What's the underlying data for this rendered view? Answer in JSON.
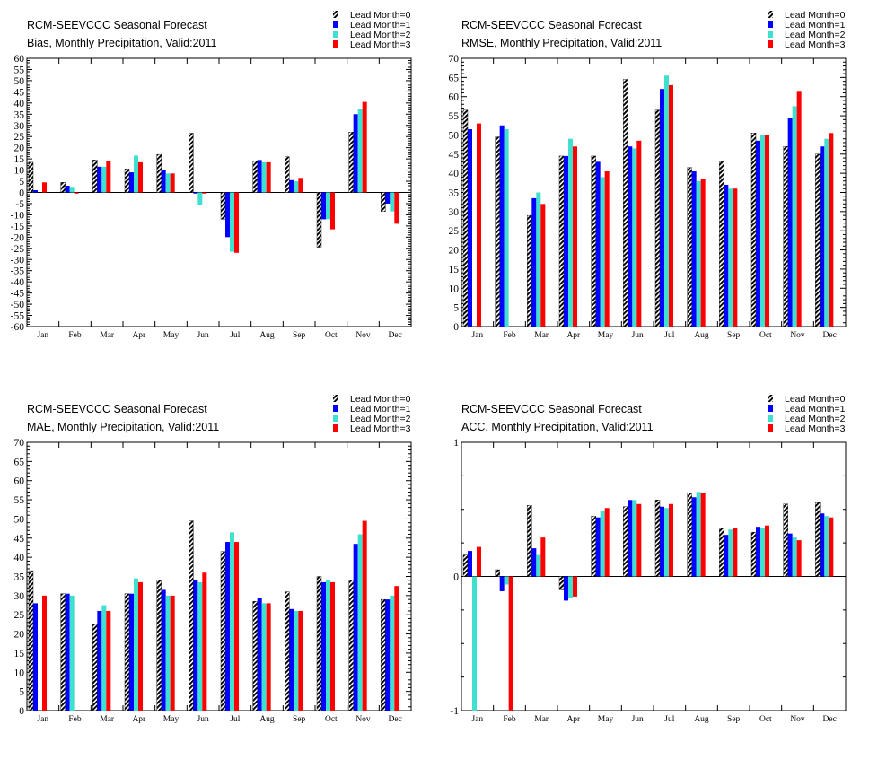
{
  "legend": [
    "Lead Month=0",
    "Lead Month=1",
    "Lead Month=2",
    "Lead Month=3"
  ],
  "colors": [
    "hatched-black",
    "#0000ff",
    "#40e0d0",
    "#ff0000"
  ],
  "months": [
    "Jan",
    "Feb",
    "Mar",
    "Apr",
    "May",
    "Jun",
    "Jul",
    "Aug",
    "Sep",
    "Oct",
    "Nov",
    "Dec"
  ],
  "chart_data": [
    {
      "type": "bar",
      "title": "RCM-SEEVCCC Seasonal Forecast",
      "subtitle": "Bias, Monthly Precipitation, Valid:2011",
      "categories": [
        "Jan",
        "Feb",
        "Mar",
        "Apr",
        "May",
        "Jun",
        "Jul",
        "Aug",
        "Sep",
        "Oct",
        "Nov",
        "Dec"
      ],
      "ylim": [
        -60,
        60
      ],
      "yticks": [
        -60,
        -55,
        -50,
        -45,
        -40,
        -35,
        -30,
        -25,
        -20,
        -15,
        -10,
        -5,
        0,
        5,
        10,
        15,
        20,
        25,
        30,
        35,
        40,
        45,
        50,
        55,
        60
      ],
      "series": [
        {
          "name": "Lead Month=0",
          "values": [
            13.5,
            4.5,
            14.5,
            10.5,
            17.0,
            26.5,
            -12.0,
            14.0,
            16.0,
            -24.5,
            27.0,
            -8.5
          ]
        },
        {
          "name": "Lead Month=1",
          "values": [
            1.0,
            3.0,
            11.5,
            9.0,
            10.0,
            -0.5,
            -20.0,
            14.5,
            5.5,
            -12.0,
            35.0,
            -5.0
          ]
        },
        {
          "name": "Lead Month=2",
          "values": [
            0.0,
            2.5,
            11.5,
            16.5,
            8.5,
            -5.5,
            -26.5,
            13.5,
            5.0,
            -12.0,
            37.5,
            -8.5
          ]
        },
        {
          "name": "Lead Month=3",
          "values": [
            4.5,
            -0.5,
            14.0,
            13.5,
            8.5,
            -0.5,
            -27.0,
            13.5,
            6.5,
            -16.5,
            40.5,
            -14.0
          ]
        }
      ]
    },
    {
      "type": "bar",
      "title": "RCM-SEEVCCC Seasonal Forecast",
      "subtitle": "RMSE, Monthly Precipitation, Valid:2011",
      "categories": [
        "Jan",
        "Feb",
        "Mar",
        "Apr",
        "May",
        "Jun",
        "Jul",
        "Aug",
        "Sep",
        "Oct",
        "Nov",
        "Dec"
      ],
      "ylim": [
        0,
        70
      ],
      "yticks": [
        0,
        5,
        10,
        15,
        20,
        25,
        30,
        35,
        40,
        45,
        50,
        55,
        60,
        65,
        70
      ],
      "series": [
        {
          "name": "Lead Month=0",
          "values": [
            56.5,
            49.5,
            29.0,
            44.5,
            44.5,
            64.5,
            56.5,
            41.5,
            43.0,
            50.5,
            47.0,
            45.0
          ]
        },
        {
          "name": "Lead Month=1",
          "values": [
            51.5,
            52.5,
            33.5,
            44.5,
            43.0,
            47.0,
            62.0,
            40.5,
            37.0,
            48.5,
            54.5,
            47.0
          ]
        },
        {
          "name": "Lead Month=2",
          "values": [
            0.0,
            51.5,
            35.0,
            49.0,
            39.0,
            46.5,
            65.5,
            38.0,
            36.0,
            50.0,
            57.5,
            49.0
          ]
        },
        {
          "name": "Lead Month=3",
          "values": [
            53.0,
            0.0,
            32.0,
            47.0,
            40.5,
            48.5,
            63.0,
            38.5,
            36.0,
            50.0,
            61.5,
            50.5
          ]
        }
      ]
    },
    {
      "type": "bar",
      "title": "RCM-SEEVCCC Seasonal Forecast",
      "subtitle": "MAE, Monthly Precipitation, Valid:2011",
      "categories": [
        "Jan",
        "Feb",
        "Mar",
        "Apr",
        "May",
        "Jun",
        "Jul",
        "Aug",
        "Sep",
        "Oct",
        "Nov",
        "Dec"
      ],
      "ylim": [
        0,
        70
      ],
      "yticks": [
        0,
        5,
        10,
        15,
        20,
        25,
        30,
        35,
        40,
        45,
        50,
        55,
        60,
        65,
        70
      ],
      "series": [
        {
          "name": "Lead Month=0",
          "values": [
            36.5,
            30.5,
            22.5,
            30.5,
            34.0,
            49.5,
            41.5,
            28.5,
            31.0,
            35.0,
            34.0,
            29.0
          ]
        },
        {
          "name": "Lead Month=1",
          "values": [
            28.0,
            30.5,
            26.0,
            30.5,
            31.5,
            34.0,
            44.0,
            29.5,
            26.5,
            33.5,
            43.5,
            29.0
          ]
        },
        {
          "name": "Lead Month=2",
          "values": [
            0.0,
            30.0,
            27.5,
            34.5,
            30.0,
            33.5,
            46.5,
            28.0,
            26.0,
            34.0,
            46.0,
            30.0
          ]
        },
        {
          "name": "Lead Month=3",
          "values": [
            30.0,
            0.0,
            26.0,
            33.5,
            30.0,
            36.0,
            44.0,
            28.0,
            26.0,
            33.5,
            49.5,
            32.5
          ]
        }
      ]
    },
    {
      "type": "bar",
      "title": "RCM-SEEVCCC Seasonal Forecast",
      "subtitle": "ACC, Monthly Precipitation, Valid:2011",
      "categories": [
        "Jan",
        "Feb",
        "Mar",
        "Apr",
        "May",
        "Jun",
        "Jul",
        "Aug",
        "Sep",
        "Oct",
        "Nov",
        "Dec"
      ],
      "ylim": [
        -1,
        1
      ],
      "yticks": [
        -1,
        0,
        1
      ],
      "series": [
        {
          "name": "Lead Month=0",
          "values": [
            0.16,
            0.05,
            0.53,
            -0.1,
            0.45,
            0.52,
            0.57,
            0.62,
            0.36,
            0.33,
            0.54,
            0.55
          ]
        },
        {
          "name": "Lead Month=1",
          "values": [
            0.19,
            -0.11,
            0.21,
            -0.18,
            0.44,
            0.57,
            0.52,
            0.59,
            0.31,
            0.37,
            0.32,
            0.47
          ]
        },
        {
          "name": "Lead Month=2",
          "values": [
            -1.0,
            -0.06,
            0.16,
            -0.16,
            0.49,
            0.57,
            0.51,
            0.63,
            0.35,
            0.36,
            0.29,
            0.45
          ]
        },
        {
          "name": "Lead Month=3",
          "values": [
            0.22,
            -1.0,
            0.29,
            -0.15,
            0.51,
            0.54,
            0.54,
            0.62,
            0.36,
            0.38,
            0.27,
            0.44
          ]
        }
      ]
    }
  ]
}
